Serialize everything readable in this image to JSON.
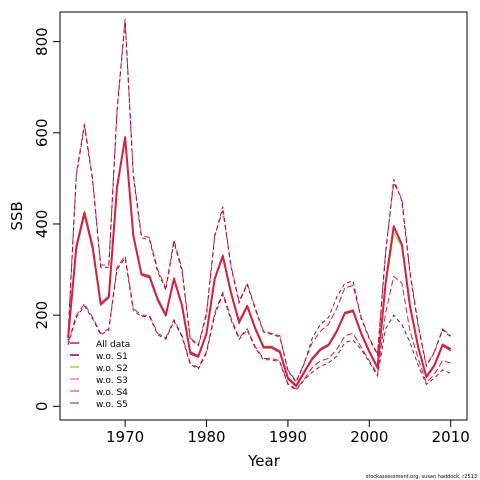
{
  "chart_data": {
    "type": "line",
    "xlabel": "Year",
    "ylabel": "SSB",
    "xlim": [
      1962,
      2012
    ],
    "ylim": [
      -30,
      865
    ],
    "x_ticks": [
      1970,
      1980,
      1990,
      2000,
      2010
    ],
    "y_ticks": [
      0,
      200,
      400,
      600,
      800
    ],
    "grid": false,
    "legend_position": "bottom-left",
    "credit": "stockassessment.org, susan haddock, r2513",
    "x": [
      1963,
      1964,
      1965,
      1966,
      1967,
      1968,
      1969,
      1970,
      1971,
      1972,
      1973,
      1974,
      1975,
      1976,
      1977,
      1978,
      1979,
      1980,
      1981,
      1982,
      1983,
      1984,
      1985,
      1986,
      1987,
      1988,
      1989,
      1990,
      1991,
      1992,
      1993,
      1994,
      1995,
      1996,
      1997,
      1998,
      1999,
      2000,
      2001,
      2002,
      2003,
      2004,
      2005,
      2006,
      2007,
      2008,
      2009,
      2010
    ],
    "series": [
      {
        "name": "All data",
        "color": "#d6213f",
        "width": 2.0,
        "values": [
          150,
          350,
          425,
          350,
          225,
          240,
          480,
          590,
          375,
          290,
          285,
          235,
          200,
          280,
          220,
          118,
          110,
          160,
          280,
          330,
          250,
          185,
          220,
          170,
          130,
          130,
          120,
          62,
          45,
          75,
          105,
          125,
          135,
          165,
          205,
          210,
          160,
          120,
          85,
          270,
          395,
          355,
          220,
          130,
          65,
          90,
          135,
          125
        ]
      },
      {
        "name": "w.o. S1",
        "color": "#9d0f46",
        "width": 1.3,
        "values": [
          145,
          345,
          420,
          345,
          222,
          238,
          478,
          588,
          372,
          288,
          282,
          232,
          198,
          278,
          218,
          115,
          108,
          158,
          278,
          328,
          248,
          182,
          218,
          168,
          128,
          128,
          118,
          60,
          43,
          73,
          103,
          123,
          133,
          163,
          203,
          208,
          158,
          118,
          83,
          268,
          393,
          353,
          218,
          128,
          63,
          88,
          133,
          122
        ]
      },
      {
        "name": "w.o. S2",
        "color": "#a3d65b",
        "width": 1.3,
        "values": [
          152,
          352,
          428,
          352,
          227,
          242,
          482,
          592,
          377,
          292,
          287,
          237,
          202,
          282,
          222,
          120,
          112,
          162,
          282,
          332,
          252,
          187,
          222,
          172,
          132,
          132,
          122,
          64,
          47,
          77,
          107,
          127,
          137,
          167,
          207,
          212,
          162,
          122,
          87,
          265,
          380,
          350,
          215,
          128,
          66,
          92,
          137,
          127
        ]
      },
      {
        "name": "w.o. S3",
        "color": "#ef7fd2",
        "width": 1.3,
        "values": [
          148,
          348,
          423,
          348,
          223,
          239,
          479,
          589,
          374,
          289,
          284,
          234,
          199,
          279,
          219,
          117,
          109,
          159,
          279,
          329,
          249,
          184,
          219,
          169,
          129,
          129,
          119,
          61,
          44,
          74,
          104,
          124,
          134,
          164,
          204,
          209,
          159,
          119,
          84,
          269,
          394,
          354,
          219,
          129,
          64,
          89,
          134,
          124
        ]
      },
      {
        "name": "w.o. S4",
        "color": "#ff7a6b",
        "width": 1.3,
        "values": [
          150,
          350,
          425,
          350,
          225,
          240,
          480,
          590,
          375,
          290,
          285,
          235,
          200,
          280,
          220,
          118,
          110,
          160,
          280,
          330,
          250,
          185,
          220,
          170,
          130,
          130,
          120,
          62,
          45,
          75,
          105,
          125,
          135,
          165,
          205,
          210,
          160,
          120,
          85,
          270,
          395,
          355,
          220,
          130,
          65,
          90,
          135,
          125
        ]
      },
      {
        "name": "w.o. S5",
        "color": "#b06aa3",
        "width": 1.3,
        "values": [
          149,
          349,
          424,
          349,
          224,
          239,
          479,
          589,
          374,
          289,
          284,
          234,
          199,
          279,
          219,
          117,
          109,
          159,
          279,
          329,
          249,
          184,
          219,
          169,
          129,
          129,
          119,
          61,
          44,
          74,
          104,
          124,
          134,
          164,
          204,
          209,
          159,
          119,
          84,
          270,
          395,
          355,
          220,
          130,
          65,
          90,
          135,
          125
        ]
      }
    ],
    "confidence_bands": [
      {
        "color": "#d6213f",
        "dash": "6,3",
        "upper": [
          160,
          510,
          620,
          500,
          310,
          310,
          650,
          850,
          510,
          375,
          370,
          300,
          260,
          365,
          300,
          150,
          135,
          205,
          375,
          430,
          310,
          230,
          270,
          215,
          165,
          160,
          155,
          80,
          55,
          95,
          140,
          165,
          180,
          215,
          260,
          265,
          195,
          150,
          115,
          340,
          490,
          455,
          295,
          180,
          90,
          120,
          170,
          155
        ],
        "lower": [
          140,
          200,
          225,
          195,
          160,
          170,
          305,
          330,
          215,
          200,
          200,
          160,
          150,
          190,
          155,
          95,
          85,
          120,
          205,
          250,
          195,
          150,
          170,
          130,
          105,
          105,
          100,
          50,
          38,
          60,
          85,
          100,
          105,
          125,
          155,
          160,
          130,
          100,
          70,
          205,
          285,
          270,
          165,
          105,
          52,
          70,
          100,
          95
        ]
      },
      {
        "color": "#9d0f46",
        "dash": "4,3",
        "upper": [
          155,
          505,
          615,
          495,
          305,
          305,
          645,
          845,
          505,
          370,
          365,
          295,
          255,
          360,
          295,
          148,
          133,
          200,
          372,
          438,
          306,
          227,
          267,
          212,
          163,
          158,
          152,
          78,
          53,
          93,
          150,
          180,
          195,
          240,
          270,
          275,
          192,
          148,
          113,
          335,
          498,
          450,
          290,
          176,
          88,
          118,
          168,
          152
        ],
        "lower": [
          135,
          195,
          220,
          192,
          157,
          167,
          300,
          325,
          210,
          197,
          197,
          157,
          147,
          187,
          152,
          92,
          82,
          117,
          200,
          245,
          190,
          147,
          167,
          127,
          102,
          102,
          97,
          48,
          36,
          58,
          75,
          88,
          95,
          110,
          140,
          145,
          125,
          97,
          67,
          170,
          200,
          180,
          140,
          90,
          48,
          62,
          80,
          72
        ]
      }
    ],
    "colors": {
      "axis": "#000000",
      "background": "#ffffff"
    }
  }
}
